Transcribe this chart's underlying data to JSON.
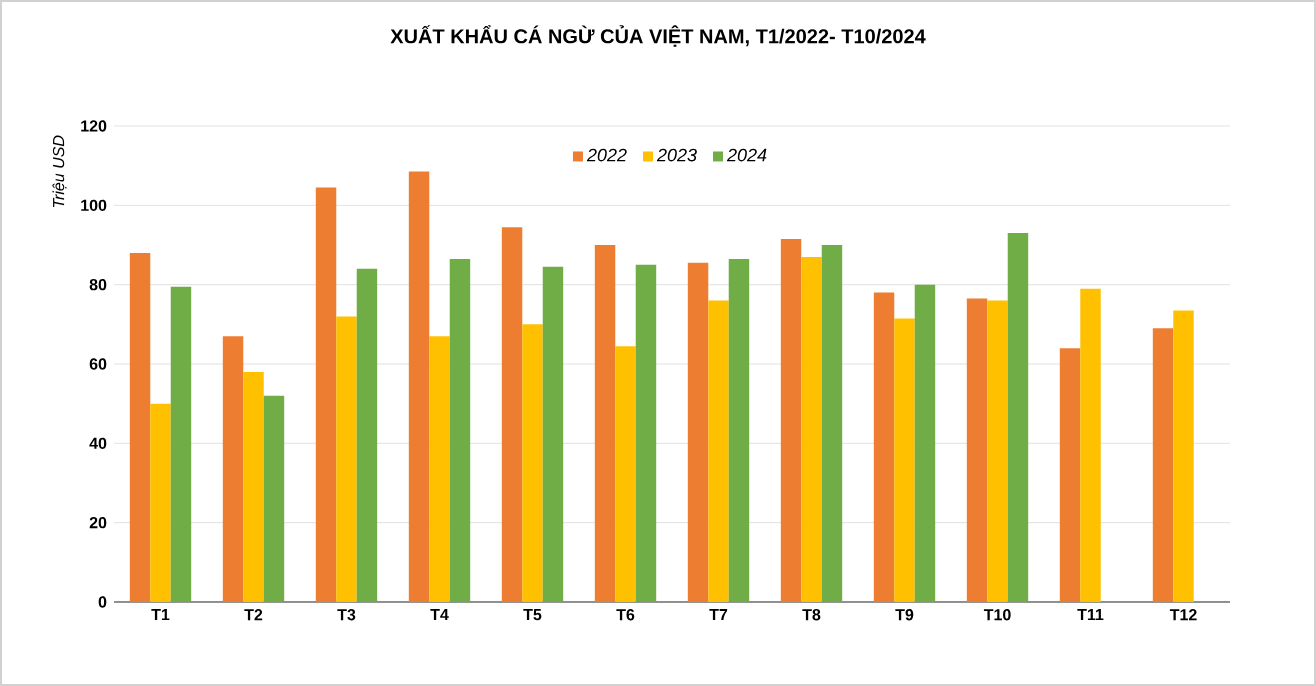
{
  "chart_data": {
    "type": "bar",
    "title": "XUẤT KHẨU CÁ NGỪ CỦA VIỆT NAM, T1/2022- T10/2024",
    "ylabel": "Triệu USD",
    "categories": [
      "T1",
      "T2",
      "T3",
      "T4",
      "T5",
      "T6",
      "T7",
      "T8",
      "T9",
      "T10",
      "T11",
      "T12"
    ],
    "series": [
      {
        "name": "2022",
        "color": "#ed7d31",
        "values": [
          88,
          67,
          104.5,
          108.5,
          94.5,
          90,
          85.5,
          91.5,
          78,
          76.5,
          64,
          69
        ]
      },
      {
        "name": "2023",
        "color": "#ffc000",
        "values": [
          50,
          58,
          72,
          67,
          70,
          64.5,
          76,
          87,
          71.5,
          76,
          79,
          73.5
        ]
      },
      {
        "name": "2024",
        "color": "#70ad47",
        "values": [
          79.5,
          52,
          84,
          86.5,
          84.5,
          85,
          86.5,
          90,
          80,
          93,
          null,
          null
        ]
      }
    ],
    "ylim": [
      0,
      120
    ],
    "yticks": [
      0,
      20,
      40,
      60,
      80,
      100,
      120
    ],
    "grid": "y",
    "legend": "top"
  }
}
